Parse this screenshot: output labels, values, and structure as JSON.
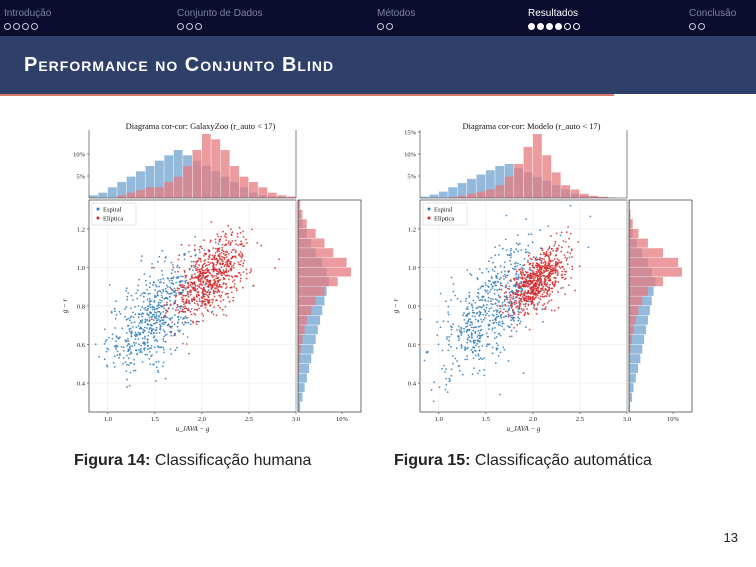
{
  "nav": {
    "sections": [
      {
        "title": "Introdução",
        "dots": 4,
        "filled": 0,
        "active": false
      },
      {
        "title": "Conjunto de Dados",
        "dots": 3,
        "filled": 0,
        "active": false
      },
      {
        "title": "Métodos",
        "dots": 2,
        "filled": 0,
        "active": false
      },
      {
        "title": "Resultados",
        "dots": 6,
        "filled": 4,
        "active": true
      },
      {
        "title": "Conclusão",
        "dots": 2,
        "filled": 0,
        "active": false
      }
    ]
  },
  "header": {
    "title": "Performance no Conjunto Blind"
  },
  "figures": [
    {
      "number": "Figura 14:",
      "caption": "Classificação humana"
    },
    {
      "number": "Figura 15:",
      "caption": "Classificação automática"
    }
  ],
  "page_number": "13",
  "colors": {
    "spiral": "#2b7bba",
    "elliptical": "#d62728",
    "spiral_hist": "#6fa3cf",
    "elliptical_hist": "#e57b7f"
  },
  "chart_data": [
    {
      "type": "scatter",
      "title": "Diagrama cor-cor: GalaxyZoo (r_auto < 17)",
      "xlabel": "u_JAVA − g",
      "ylabel": "g − r",
      "xlim": [
        0.8,
        3.0
      ],
      "ylim": [
        0.25,
        1.35
      ],
      "xticks": [
        "1.0",
        "1.5",
        "2.0",
        "2.5",
        "3.0"
      ],
      "yticks": [
        "0.4",
        "0.6",
        "0.8",
        "1.0",
        "1.2"
      ],
      "top_hist_ticks": [
        "5%",
        "10%"
      ],
      "right_hist_ticks": [
        "10%"
      ],
      "legend": [
        "Espiral",
        "Elíptica"
      ],
      "series": [
        {
          "name": "Espiral",
          "center": [
            1.5,
            0.75
          ],
          "spread": [
            0.25,
            0.12
          ],
          "tilt": 0.35
        },
        {
          "name": "Elíptica",
          "center": [
            2.1,
            0.95
          ],
          "spread": [
            0.2,
            0.09
          ],
          "tilt": 0.3
        }
      ],
      "top_hist": {
        "bins_start": 0.8,
        "bin_width": 0.1,
        "spiral": [
          0.5,
          1,
          2,
          3,
          4,
          5,
          6,
          7,
          8,
          9,
          8,
          7,
          6,
          5,
          4,
          3,
          2,
          1,
          0.5,
          0.3,
          0.2,
          0.1
        ],
        "elliptical": [
          0,
          0,
          0,
          0.5,
          1,
          1.5,
          2,
          2,
          3,
          4,
          6,
          9,
          12,
          11,
          9,
          6,
          4,
          3,
          2,
          1,
          0.5,
          0.3
        ]
      },
      "right_hist": {
        "bins_start": 0.25,
        "bin_width": 0.05,
        "spiral": [
          0.5,
          1,
          1.5,
          2,
          2.5,
          3,
          3.5,
          4,
          4.5,
          5,
          5.5,
          6,
          6.5,
          7,
          6.5,
          5.5,
          4,
          3,
          2,
          1,
          0.5,
          0.2
        ],
        "elliptical": [
          0,
          0,
          0,
          0,
          0.2,
          0.4,
          0.6,
          1,
          1.5,
          2,
          3,
          4,
          6,
          9,
          12,
          11,
          8,
          6,
          4,
          2,
          1,
          0.5
        ]
      }
    },
    {
      "type": "scatter",
      "title": "Diagrama cor-cor: Modelo (r_auto < 17)",
      "xlabel": "u_JAVA − g",
      "ylabel": "g − r",
      "xlim": [
        0.8,
        3.0
      ],
      "ylim": [
        0.25,
        1.35
      ],
      "xticks": [
        "1.0",
        "1.5",
        "2.0",
        "2.5",
        "3.0"
      ],
      "yticks": [
        "0.4",
        "0.6",
        "0.8",
        "1.0",
        "1.2"
      ],
      "top_hist_ticks": [
        "5%",
        "10%",
        "15%"
      ],
      "right_hist_ticks": [
        "10%"
      ],
      "legend": [
        "Espiral",
        "Elíptica"
      ],
      "series": [
        {
          "name": "Espiral",
          "center": [
            1.55,
            0.78
          ],
          "spread": [
            0.28,
            0.13
          ],
          "tilt": 0.38
        },
        {
          "name": "Elíptica",
          "center": [
            2.05,
            0.93
          ],
          "spread": [
            0.16,
            0.07
          ],
          "tilt": 0.3
        }
      ],
      "top_hist": {
        "bins_start": 0.8,
        "bin_width": 0.1,
        "spiral": [
          0.3,
          0.8,
          1.5,
          2.5,
          3.5,
          4.5,
          5.5,
          6.5,
          7.5,
          8,
          7,
          6,
          5,
          4,
          3,
          2,
          1,
          0.5,
          0.3,
          0.2,
          0.1,
          0
        ],
        "elliptical": [
          0,
          0,
          0,
          0.2,
          0.5,
          1,
          1.5,
          2,
          3,
          5,
          8,
          12,
          15,
          10,
          6,
          3,
          2,
          1,
          0.5,
          0.3,
          0.1,
          0
        ]
      },
      "right_hist": {
        "bins_start": 0.25,
        "bin_width": 0.05,
        "spiral": [
          0.3,
          0.8,
          1.2,
          1.8,
          2.4,
          3,
          3.5,
          4,
          4.5,
          5,
          5.5,
          6,
          6.5,
          7,
          6,
          5,
          3.5,
          2,
          1,
          0.5,
          0.2,
          0.1
        ],
        "elliptical": [
          0,
          0,
          0,
          0,
          0,
          0.2,
          0.4,
          0.8,
          1.2,
          1.8,
          2.5,
          3.5,
          5,
          9,
          14,
          13,
          9,
          5,
          2.5,
          1,
          0.4,
          0.2
        ]
      }
    }
  ]
}
